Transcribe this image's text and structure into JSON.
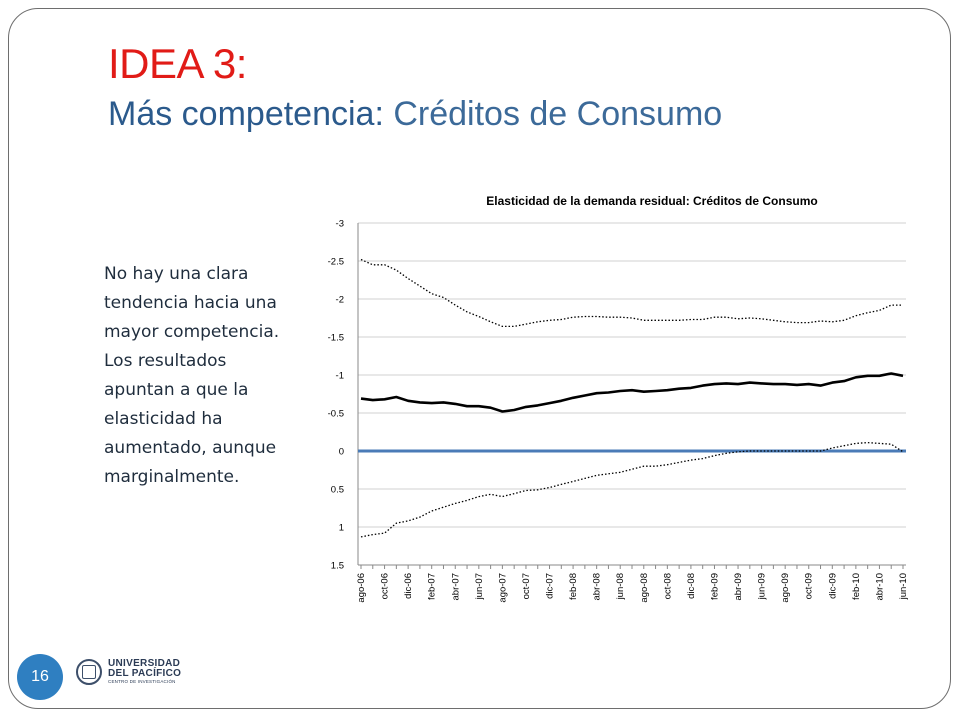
{
  "slide": {
    "title_line1": "IDEA 3:",
    "title_bold": "Más competencia:",
    "title_rest": " Créditos de Consumo",
    "body": "No hay una clara tendencia hacia una mayor competencia. Los resultados apuntan a que la elasticidad ha aumentado, aunque marginalmente.",
    "page_number": "16",
    "logo_line1": "UNIVERSIDAD",
    "logo_line2": "DEL PACÍFICO",
    "logo_line3": "CENTRO DE INVESTIGACIÓN"
  },
  "chart_data": {
    "type": "line",
    "title": "Elasticidad de la demanda residual: Créditos de Consumo",
    "y_axis": {
      "reversed": true,
      "min": -3,
      "max": 1.5,
      "ticks": [
        "-3",
        "-2.5",
        "-2",
        "-1.5",
        "-1",
        "-0.5",
        "0",
        "0.5",
        "1",
        "1.5"
      ]
    },
    "x": [
      "ago-06",
      "sep-06",
      "oct-06",
      "nov-06",
      "dic-06",
      "ene-07",
      "feb-07",
      "mar-07",
      "abr-07",
      "may-07",
      "jun-07",
      "jul-07",
      "ago-07",
      "sep-07",
      "oct-07",
      "nov-07",
      "dic-07",
      "ene-08",
      "feb-08",
      "mar-08",
      "abr-08",
      "may-08",
      "jun-08",
      "jul-08",
      "ago-08",
      "sep-08",
      "oct-08",
      "nov-08",
      "dic-08",
      "ene-09",
      "feb-09",
      "mar-09",
      "abr-09",
      "may-09",
      "jun-09",
      "jul-09",
      "ago-09",
      "sep-09",
      "oct-09",
      "nov-09",
      "dic-09",
      "ene-10",
      "feb-10",
      "mar-10",
      "abr-10",
      "may-10",
      "jun-10"
    ],
    "x_tick_labels": [
      "ago-06",
      "oct-06",
      "dic-06",
      "feb-07",
      "abr-07",
      "jun-07",
      "ago-07",
      "oct-07",
      "dic-07",
      "feb-08",
      "abr-08",
      "jun-08",
      "ago-08",
      "oct-08",
      "dic-08",
      "feb-09",
      "abr-09",
      "jun-09",
      "ago-09",
      "oct-09",
      "dic-09",
      "feb-10",
      "abr-10",
      "jun-10"
    ],
    "grid": true,
    "reference_line": {
      "value": 0,
      "color": "#4a7bb7"
    },
    "series": [
      {
        "style": "solid",
        "color": "#000000",
        "values": [
          -0.69,
          -0.67,
          -0.68,
          -0.71,
          -0.66,
          -0.64,
          -0.63,
          -0.64,
          -0.62,
          -0.59,
          -0.59,
          -0.57,
          -0.52,
          -0.54,
          -0.58,
          -0.6,
          -0.63,
          -0.66,
          -0.7,
          -0.73,
          -0.76,
          -0.77,
          -0.79,
          -0.8,
          -0.78,
          -0.79,
          -0.8,
          -0.82,
          -0.83,
          -0.86,
          -0.88,
          -0.89,
          -0.88,
          -0.9,
          -0.89,
          -0.88,
          -0.88,
          -0.87,
          -0.88,
          -0.86,
          -0.9,
          -0.92,
          -0.97,
          -0.99,
          -0.99,
          -1.02,
          -0.99
        ]
      },
      {
        "style": "dotted",
        "color": "#000000",
        "values": [
          -2.52,
          -2.45,
          -2.45,
          -2.38,
          -2.27,
          -2.17,
          -2.07,
          -2.02,
          -1.92,
          -1.83,
          -1.77,
          -1.7,
          -1.64,
          -1.64,
          -1.67,
          -1.7,
          -1.72,
          -1.73,
          -1.76,
          -1.77,
          -1.77,
          -1.76,
          -1.76,
          -1.75,
          -1.72,
          -1.72,
          -1.72,
          -1.72,
          -1.73,
          -1.73,
          -1.76,
          -1.76,
          -1.74,
          -1.75,
          -1.74,
          -1.72,
          -1.7,
          -1.69,
          -1.69,
          -1.71,
          -1.7,
          -1.72,
          -1.78,
          -1.82,
          -1.85,
          -1.92,
          -1.92
        ]
      },
      {
        "style": "dotted",
        "color": "#000000",
        "values": [
          1.13,
          1.1,
          1.08,
          0.95,
          0.92,
          0.87,
          0.79,
          0.74,
          0.69,
          0.65,
          0.6,
          0.57,
          0.6,
          0.56,
          0.52,
          0.51,
          0.48,
          0.44,
          0.4,
          0.36,
          0.32,
          0.3,
          0.28,
          0.24,
          0.2,
          0.2,
          0.18,
          0.15,
          0.12,
          0.1,
          0.06,
          0.03,
          0.01,
          0,
          0,
          0,
          0,
          0,
          0,
          0,
          -0.04,
          -0.07,
          -0.1,
          -0.11,
          -0.1,
          -0.09,
          0.01
        ]
      }
    ]
  }
}
